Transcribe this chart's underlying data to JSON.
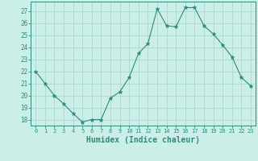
{
  "x": [
    0,
    1,
    2,
    3,
    4,
    5,
    6,
    7,
    8,
    9,
    10,
    11,
    12,
    13,
    14,
    15,
    16,
    17,
    18,
    19,
    20,
    21,
    22,
    23
  ],
  "y": [
    22,
    21,
    20,
    19.3,
    18.5,
    17.8,
    18.0,
    18.0,
    19.8,
    20.3,
    21.5,
    23.5,
    24.3,
    27.2,
    25.8,
    25.7,
    27.3,
    27.3,
    25.8,
    25.1,
    24.2,
    23.2,
    21.5,
    20.8
  ],
  "line_color": "#2e8b7a",
  "marker": "*",
  "marker_size": 3.5,
  "bg_color": "#cceee8",
  "grid_color": "#aad8d0",
  "tick_color": "#2e8b7a",
  "xlabel": "Humidex (Indice chaleur)",
  "xlabel_fontsize": 7,
  "ylim": [
    17.5,
    27.8
  ],
  "yticks": [
    18,
    19,
    20,
    21,
    22,
    23,
    24,
    25,
    26,
    27
  ],
  "xtick_labels": [
    "0",
    "1",
    "2",
    "3",
    "4",
    "5",
    "6",
    "7",
    "8",
    "9",
    "10",
    "11",
    "12",
    "13",
    "14",
    "15",
    "16",
    "17",
    "18",
    "19",
    "20",
    "21",
    "22",
    "23"
  ],
  "spine_color": "#2e8b7a"
}
